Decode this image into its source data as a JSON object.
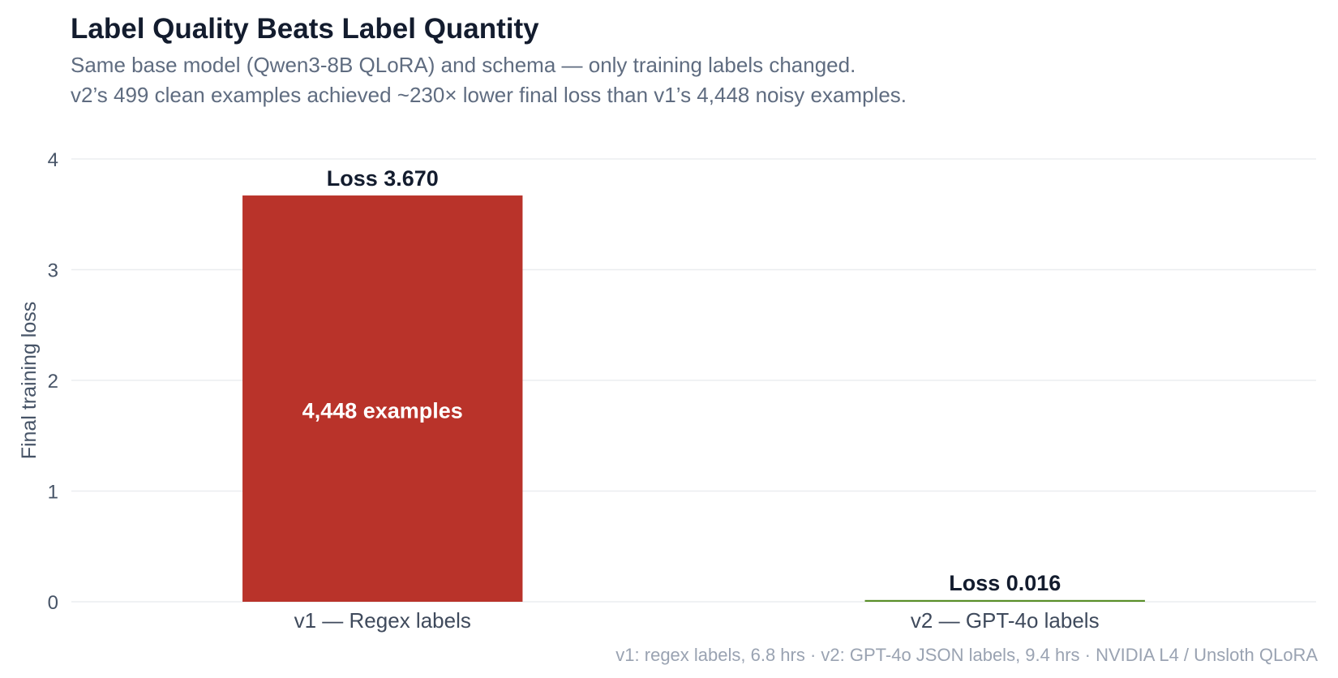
{
  "title": "Label Quality Beats Label Quantity",
  "subtitle_lines": [
    "Same base model (Qwen3-8B QLoRA) and schema — only training labels changed.",
    "v2’s 499 clean examples achieved ~230× lower final loss than v1’s 4,448 noisy examples."
  ],
  "caption": "v1: regex labels, 6.8 hrs · v2: GPT-4o JSON labels, 9.4 hrs · NVIDIA L4 / Unsloth QLoRA",
  "chart_data": {
    "type": "bar",
    "categories": [
      "v1 — Regex labels",
      "v2 — GPT-4o labels"
    ],
    "values": [
      3.67,
      0.016
    ],
    "value_labels": [
      "Loss  3.670",
      "Loss  0.016"
    ],
    "inside_labels": [
      "4,448 examples",
      ""
    ],
    "colors": [
      "#b9332a",
      "#5a8f29"
    ],
    "xlabel": "",
    "ylabel": "Final training loss",
    "ylim": [
      0,
      4
    ],
    "yticks": [
      0,
      1,
      2,
      3,
      4
    ],
    "grid": true
  }
}
